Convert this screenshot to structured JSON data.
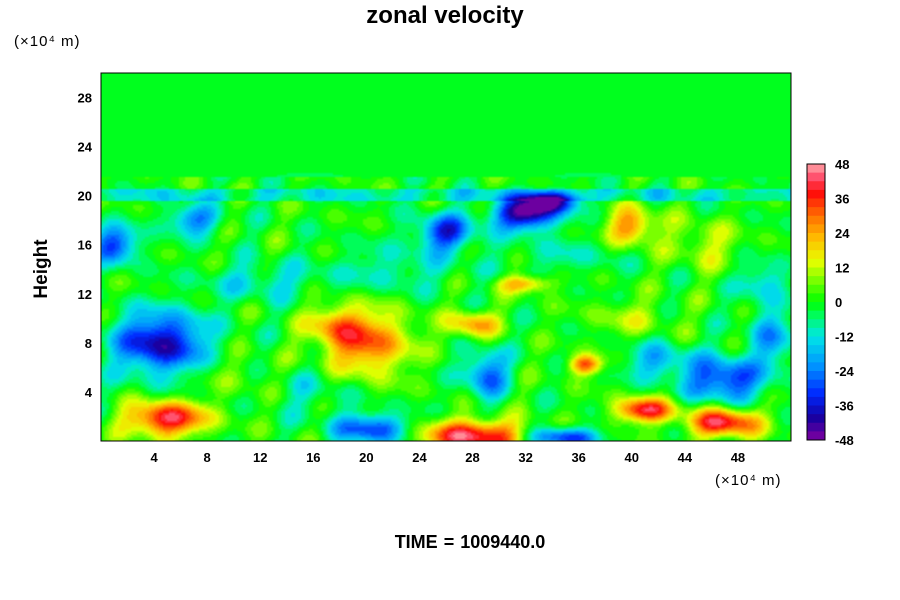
{
  "chart_data": {
    "type": "heatmap",
    "title": "zonal velocity",
    "ylabel": "Height",
    "xlabel": "",
    "x_unit": "(×10⁴ m)",
    "y_unit": "(×10⁴ m)",
    "xlim": [
      0,
      52
    ],
    "ylim": [
      0,
      30
    ],
    "x_ticks": [
      4,
      8,
      12,
      16,
      20,
      24,
      28,
      32,
      36,
      40,
      44,
      48
    ],
    "y_ticks": [
      4,
      8,
      12,
      16,
      20,
      24,
      28
    ],
    "colorbar": {
      "range": [
        -48,
        48
      ],
      "ticks": [
        48,
        36,
        24,
        12,
        0,
        -12,
        -24,
        -36,
        -48
      ],
      "levels": 32
    },
    "footer": {
      "label": "TIME",
      "equals": "=",
      "value": "1009440.0"
    },
    "features": [
      {
        "x": 4.5,
        "y": 8.0,
        "v": -40,
        "sx": 3.5,
        "sy": 2.5
      },
      {
        "x": 1.0,
        "y": 16.0,
        "v": -30,
        "sx": 1.8,
        "sy": 1.5
      },
      {
        "x": 7.0,
        "y": 18.0,
        "v": -24,
        "sx": 2.0,
        "sy": 1.2
      },
      {
        "x": 5.0,
        "y": 1.8,
        "v": 42,
        "sx": 3.0,
        "sy": 1.4
      },
      {
        "x": 10.0,
        "y": 5.5,
        "v": 6,
        "sx": 2.5,
        "sy": 2.0
      },
      {
        "x": 20.0,
        "y": 8.0,
        "v": 32,
        "sx": 3.2,
        "sy": 2.6
      },
      {
        "x": 17.5,
        "y": 9.5,
        "v": 18,
        "sx": 2.0,
        "sy": 1.5
      },
      {
        "x": 28.0,
        "y": 0.4,
        "v": 44,
        "sx": 3.8,
        "sy": 1.3
      },
      {
        "x": 20.5,
        "y": 1.0,
        "v": -32,
        "sx": 2.8,
        "sy": 1.2
      },
      {
        "x": 29.0,
        "y": 5.5,
        "v": -28,
        "sx": 1.6,
        "sy": 1.9
      },
      {
        "x": 28.0,
        "y": 9.5,
        "v": 26,
        "sx": 1.8,
        "sy": 1.1
      },
      {
        "x": 26.0,
        "y": 17.0,
        "v": -32,
        "sx": 2.2,
        "sy": 1.5
      },
      {
        "x": 32.0,
        "y": 18.5,
        "v": -46,
        "sx": 2.4,
        "sy": 1.3
      },
      {
        "x": 34.0,
        "y": 19.5,
        "v": -36,
        "sx": 2.0,
        "sy": 0.8
      },
      {
        "x": 32.0,
        "y": 12.8,
        "v": 24,
        "sx": 2.0,
        "sy": 0.7
      },
      {
        "x": 36.5,
        "y": 6.2,
        "v": 34,
        "sx": 1.2,
        "sy": 0.8
      },
      {
        "x": 35.0,
        "y": 0.3,
        "v": -34,
        "sx": 2.5,
        "sy": 0.8
      },
      {
        "x": 41.0,
        "y": 2.5,
        "v": 40,
        "sx": 2.2,
        "sy": 1.0
      },
      {
        "x": 47.0,
        "y": 1.5,
        "v": 42,
        "sx": 2.6,
        "sy": 1.2
      },
      {
        "x": 47.0,
        "y": 5.0,
        "v": -34,
        "sx": 2.8,
        "sy": 1.8
      },
      {
        "x": 42.0,
        "y": 6.5,
        "v": -18,
        "sx": 2.5,
        "sy": 1.5
      },
      {
        "x": 40.0,
        "y": 17.5,
        "v": 28,
        "sx": 1.8,
        "sy": 1.5
      },
      {
        "x": 45.5,
        "y": 16.0,
        "v": 12,
        "sx": 2.5,
        "sy": 2.0
      },
      {
        "x": 12.0,
        "y": 13.0,
        "v": -12,
        "sx": 4.0,
        "sy": 1.5
      },
      {
        "x": 22.0,
        "y": 14.0,
        "v": -10,
        "sx": 5.0,
        "sy": 1.8
      },
      {
        "x": 35.0,
        "y": 15.0,
        "v": -8,
        "sx": 4.0,
        "sy": 1.5
      },
      {
        "x": 50.0,
        "y": 13.0,
        "v": -14,
        "sx": 2.0,
        "sy": 1.5
      },
      {
        "x": 16.0,
        "y": 4.0,
        "v": -8,
        "sx": 3.0,
        "sy": 2.0
      },
      {
        "x": 40.0,
        "y": 10.0,
        "v": 10,
        "sx": 3.0,
        "sy": 1.5
      },
      {
        "x": 50.5,
        "y": 8.5,
        "v": -20,
        "sx": 1.6,
        "sy": 2.5
      }
    ]
  }
}
